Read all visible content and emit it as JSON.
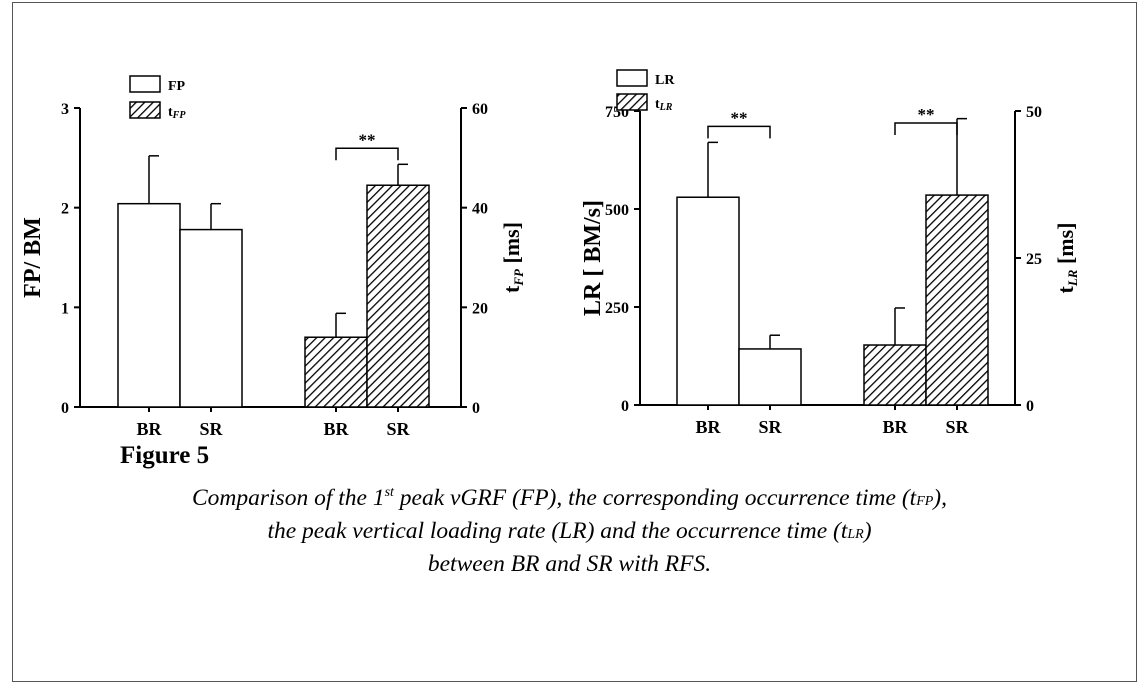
{
  "chart_data": [
    {
      "type": "bar",
      "categories": [
        "BR",
        "SR",
        "BR",
        "SR"
      ],
      "legend": [
        {
          "label_main": "FP",
          "label_sub": "",
          "pattern": "open"
        },
        {
          "label_main": "t",
          "label_sub": "FP",
          "pattern": "hatched"
        }
      ],
      "ylabel_left": "FP/ BM",
      "ylabel_right_main": "t",
      "ylabel_right_sub": "FP",
      "ylabel_right_unit": " [ms]",
      "ylim_left": [
        0,
        3
      ],
      "yticks_left": [
        0,
        1,
        2,
        3
      ],
      "ylim_right": [
        0,
        60
      ],
      "yticks_right": [
        0,
        20,
        40,
        60
      ],
      "series": [
        {
          "name": "FP",
          "axis": "left",
          "pattern": "open",
          "bars": [
            {
              "slot": 0,
              "value": 2.04,
              "error": 0.48
            },
            {
              "slot": 1,
              "value": 1.78,
              "error": 0.26
            }
          ]
        },
        {
          "name": "tFP",
          "axis": "right",
          "pattern": "hatched",
          "bars": [
            {
              "slot": 2,
              "value": 14.0,
              "error": 4.8
            },
            {
              "slot": 3,
              "value": 44.5,
              "error": 4.2
            }
          ]
        }
      ],
      "significance": [
        {
          "from_slot": 2,
          "to_slot": 3,
          "label": "**"
        }
      ]
    },
    {
      "type": "bar",
      "categories": [
        "BR",
        "SR",
        "BR",
        "SR"
      ],
      "legend": [
        {
          "label_main": "LR",
          "label_sub": "",
          "pattern": "open"
        },
        {
          "label_main": "t",
          "label_sub": "LR",
          "pattern": "hatched"
        }
      ],
      "ylabel_left": "LR [ BM/s]",
      "ylabel_right_main": "t",
      "ylabel_right_sub": "LR",
      "ylabel_right_unit": " [ms]",
      "ylim_left": [
        0,
        750
      ],
      "yticks_left": [
        0,
        250,
        500,
        750
      ],
      "ylim_right": [
        0,
        50
      ],
      "yticks_right": [
        0,
        25,
        50
      ],
      "series": [
        {
          "name": "LR",
          "axis": "left",
          "pattern": "open",
          "bars": [
            {
              "slot": 0,
              "value": 530,
              "error": 140
            },
            {
              "slot": 1,
              "value": 143,
              "error": 35
            }
          ]
        },
        {
          "name": "tLR",
          "axis": "right",
          "pattern": "hatched",
          "bars": [
            {
              "slot": 2,
              "value": 10.2,
              "error": 6.3
            },
            {
              "slot": 3,
              "value": 35.7,
              "error": 13.0
            }
          ]
        }
      ],
      "significance": [
        {
          "from_slot": 0,
          "to_slot": 1,
          "label": "**"
        },
        {
          "from_slot": 2,
          "to_slot": 3,
          "label": "**"
        }
      ]
    }
  ],
  "caption": {
    "title": "Figure 5",
    "line1_a": "Comparison of the 1",
    "line1_sup": "st",
    "line1_b": " peak vGRF (FP), the corresponding occurrence time (t",
    "line1_sub": "FP",
    "line1_c": "),",
    "line2_a": "the peak vertical loading rate (LR) and the occurrence time (t",
    "line2_sub": "LR",
    "line2_c": ")",
    "line3": "between BR and SR with RFS."
  }
}
